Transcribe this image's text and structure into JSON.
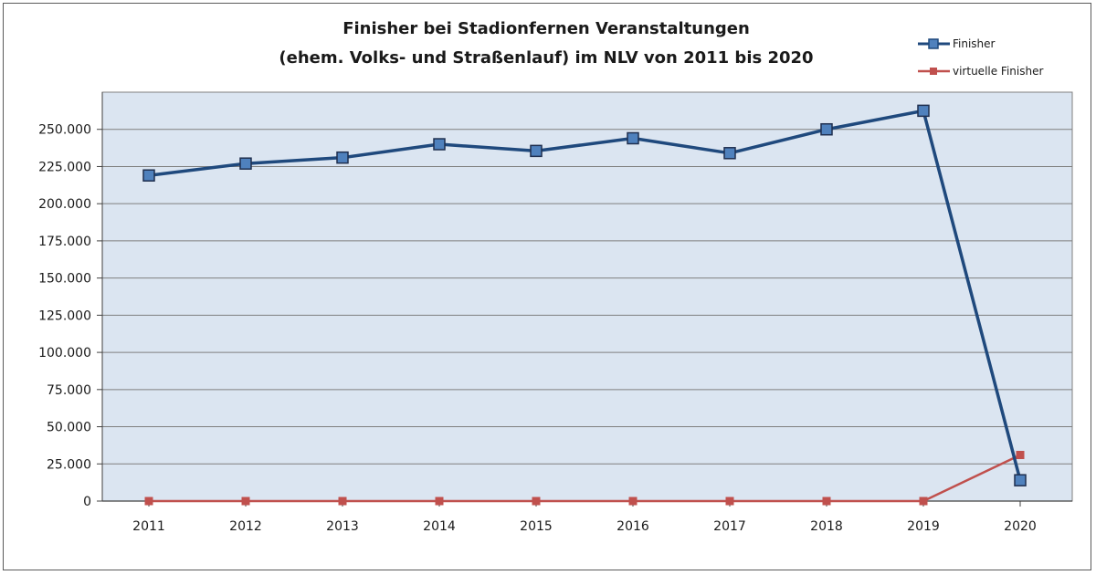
{
  "chart_data": {
    "type": "line",
    "title_line1": "Finisher bei Stadionfernen Veranstaltungen",
    "title_line2": "(ehem. Volks- und Straßenlauf) im NLV von 2011 bis 2020",
    "xlabel": "",
    "ylabel": "",
    "categories": [
      "2011",
      "2012",
      "2013",
      "2014",
      "2015",
      "2016",
      "2017",
      "2018",
      "2019",
      "2020"
    ],
    "ylim": [
      0,
      275000
    ],
    "yticks": [
      0,
      25000,
      50000,
      75000,
      100000,
      125000,
      150000,
      175000,
      200000,
      225000,
      250000
    ],
    "ytick_labels": [
      "0",
      "25.000",
      "50.000",
      "75.000",
      "100.000",
      "125.000",
      "150.000",
      "175.000",
      "200.000",
      "225.000",
      "250.000"
    ],
    "grid": "horizontal",
    "legend_position": "top-right",
    "plot_background": "#dbe5f1",
    "series": [
      {
        "name": "Finisher",
        "color": "#1f497d",
        "marker_color": "#4f81bd",
        "marker": "square-large",
        "values": [
          219000,
          227000,
          231000,
          240000,
          235500,
          244000,
          234000,
          250000,
          262500,
          14000
        ]
      },
      {
        "name": "virtuelle Finisher",
        "color": "#c0504d",
        "marker_color": "#c0504d",
        "marker": "square-small",
        "values": [
          0,
          0,
          0,
          0,
          0,
          0,
          0,
          0,
          0,
          31000
        ]
      }
    ]
  }
}
